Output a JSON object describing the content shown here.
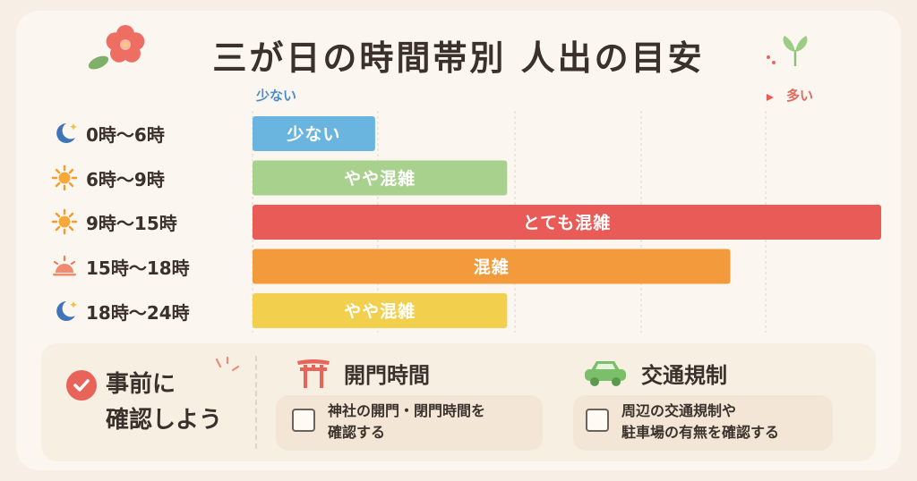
{
  "title": "三が日の時間帯別 人出の目安",
  "scale": {
    "low_label": "少ない",
    "high_label": "多い"
  },
  "chart_data": {
    "type": "bar",
    "orientation": "horizontal",
    "title": "三が日の時間帯別 人出の目安",
    "categories": [
      "0時〜6時",
      "6時〜9時",
      "9時〜15時",
      "15時〜18時",
      "18時〜24時"
    ],
    "values": [
      0.195,
      0.405,
      1.0,
      0.76,
      0.405
    ],
    "value_labels": [
      "少ない",
      "やや混雑",
      "とても混雑",
      "混雑",
      "やや混雑"
    ],
    "colors": [
      "#6ab5e0",
      "#a9d18e",
      "#e85b57",
      "#f39a3c",
      "#f3cf4e"
    ],
    "icons": [
      "moon-icon",
      "sun-icon",
      "sun-icon",
      "sunset-icon",
      "moon-icon"
    ],
    "xlim": [
      0,
      1
    ],
    "grid": true
  },
  "confirm": {
    "line1": "事前に",
    "line2": "確認しよう"
  },
  "sections": [
    {
      "icon": "torii-icon",
      "title": "開門時間",
      "line1": "神社の開門・閉門時間を",
      "line2": "確認する"
    },
    {
      "icon": "car-icon",
      "title": "交通規制",
      "line1": "周辺の交通規制や",
      "line2": "駐車場の有無を確認する"
    }
  ],
  "palette": {
    "accent_red": "#e8645a",
    "accent_blue": "#4a8fc9",
    "background": "#fbf6ef"
  }
}
